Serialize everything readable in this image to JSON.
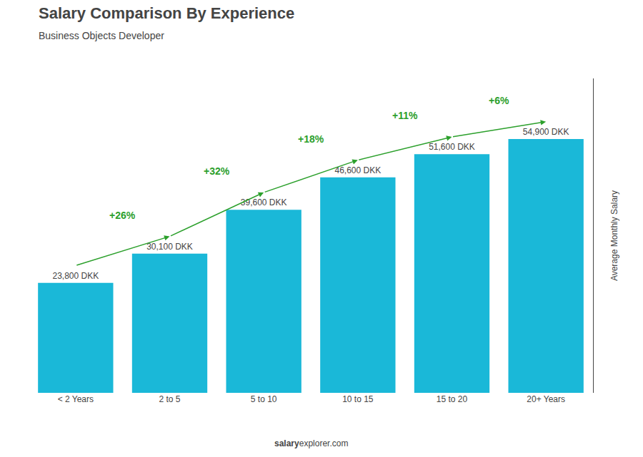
{
  "chart_data": {
    "type": "bar",
    "title": "Salary Comparison By Experience",
    "subtitle": "Business Objects Developer",
    "ylabel": "Average Monthly Salary",
    "categories": [
      "< 2 Years",
      "2 to 5",
      "5 to 10",
      "10 to 15",
      "15 to 20",
      "20+ Years"
    ],
    "values": [
      23800,
      30100,
      39600,
      46600,
      51600,
      54900
    ],
    "value_labels": [
      "23,800 DKK",
      "30,100 DKK",
      "39,600 DKK",
      "46,600 DKK",
      "51,600 DKK",
      "54,900 DKK"
    ],
    "data_labels": true,
    "annotations": [
      "+26%",
      "+32%",
      "+18%",
      "+11%",
      "+6%"
    ],
    "source": [
      "salary",
      "explorer.com"
    ],
    "color": "#1ab8d8",
    "ylim": [
      0,
      68000
    ],
    "grid": false,
    "tick_labels": "x"
  }
}
